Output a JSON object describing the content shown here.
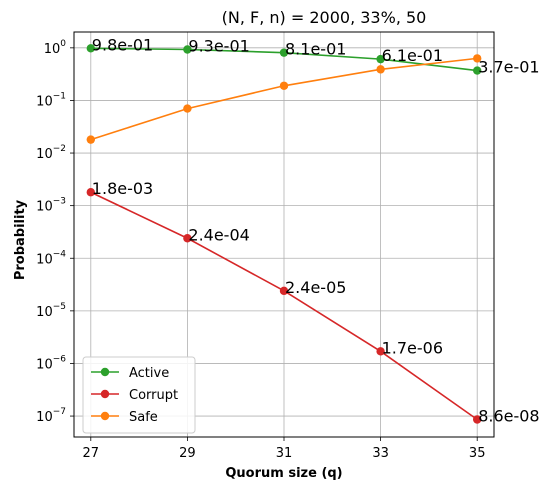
{
  "chart_data": {
    "type": "line",
    "title": "(N, F, n) = 2000, 33%, 50",
    "xlabel": "Quorum size (q)",
    "ylabel": "Probability",
    "x": [
      27,
      29,
      31,
      33,
      35
    ],
    "xticks": [
      "27",
      "29",
      "31",
      "33",
      "35"
    ],
    "yscale": "log",
    "ylim": [
      4e-08,
      2.0
    ],
    "yticks": [
      {
        "value": 1.0,
        "base": "10",
        "exp": "0"
      },
      {
        "value": 0.1,
        "base": "10",
        "exp": "−1"
      },
      {
        "value": 0.01,
        "base": "10",
        "exp": "−2"
      },
      {
        "value": 0.001,
        "base": "10",
        "exp": "−3"
      },
      {
        "value": 0.0001,
        "base": "10",
        "exp": "−4"
      },
      {
        "value": 1e-05,
        "base": "10",
        "exp": "−5"
      },
      {
        "value": 1e-06,
        "base": "10",
        "exp": "−6"
      },
      {
        "value": 1e-07,
        "base": "10",
        "exp": "−7"
      }
    ],
    "grid": true,
    "legend_position": "bottom-left",
    "series": [
      {
        "name": "Active",
        "color": "#2ca02c",
        "values": [
          0.98,
          0.93,
          0.81,
          0.61,
          0.37
        ],
        "labels": [
          "9.8e-01",
          "9.3e-01",
          "8.1e-01",
          "6.1e-01",
          "3.7e-01"
        ]
      },
      {
        "name": "Corrupt",
        "color": "#d62728",
        "values": [
          0.0018,
          0.00024,
          2.4e-05,
          1.7e-06,
          8.6e-08
        ],
        "labels": [
          "1.8e-03",
          "2.4e-04",
          "2.4e-05",
          "1.7e-06",
          "8.6e-08"
        ]
      },
      {
        "name": "Safe",
        "color": "#ff7f0e",
        "values": [
          0.018,
          0.07,
          0.19,
          0.39,
          0.63
        ],
        "labels": []
      }
    ]
  }
}
